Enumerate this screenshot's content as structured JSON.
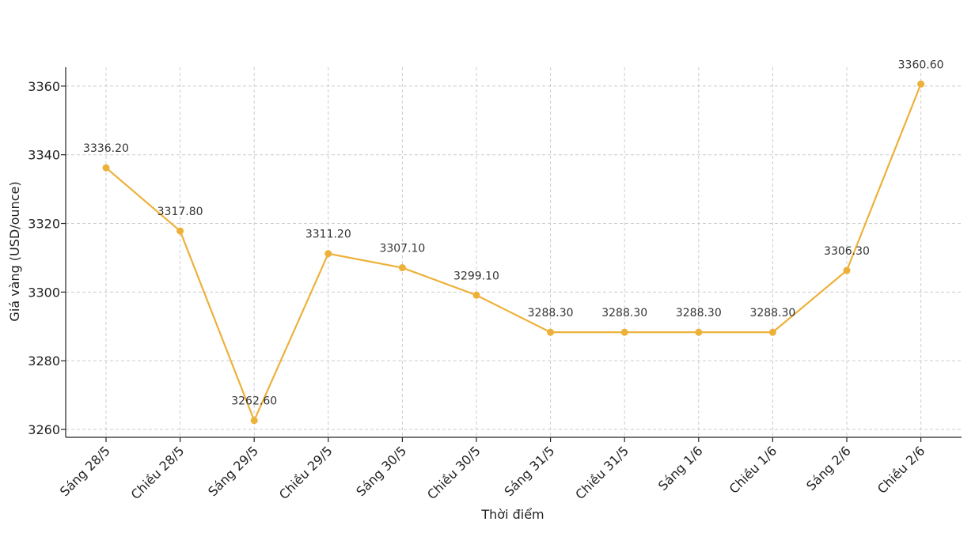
{
  "chart_data": {
    "type": "line",
    "title": "",
    "xlabel": "Thời điểm",
    "ylabel": "Giá vàng (USD/ounce)",
    "categories": [
      "Sáng 28/5",
      "Chiều 28/5",
      "Sáng 29/5",
      "Chiều 29/5",
      "Sáng 30/5",
      "Chiều 30/5",
      "Sáng 31/5",
      "Chiều 31/5",
      "Sáng 1/6",
      "Chiều 1/6",
      "Sáng 2/6",
      "Chiều 2/6"
    ],
    "values": [
      3336.2,
      3317.8,
      3262.6,
      3311.2,
      3307.1,
      3299.1,
      3288.3,
      3288.3,
      3288.3,
      3288.3,
      3306.3,
      3360.6
    ],
    "data_labels": [
      "3336.20",
      "3317.80",
      "3262.60",
      "3311.20",
      "3307.10",
      "3299.10",
      "3288.30",
      "3288.30",
      "3288.30",
      "3288.30",
      "3306.30",
      "3360.60"
    ],
    "yticks": [
      3260,
      3280,
      3300,
      3320,
      3340,
      3360
    ],
    "ylim": [
      3257.7,
      3365.5
    ],
    "grid": true,
    "legend": "none",
    "line_color": "#EDB13A"
  }
}
